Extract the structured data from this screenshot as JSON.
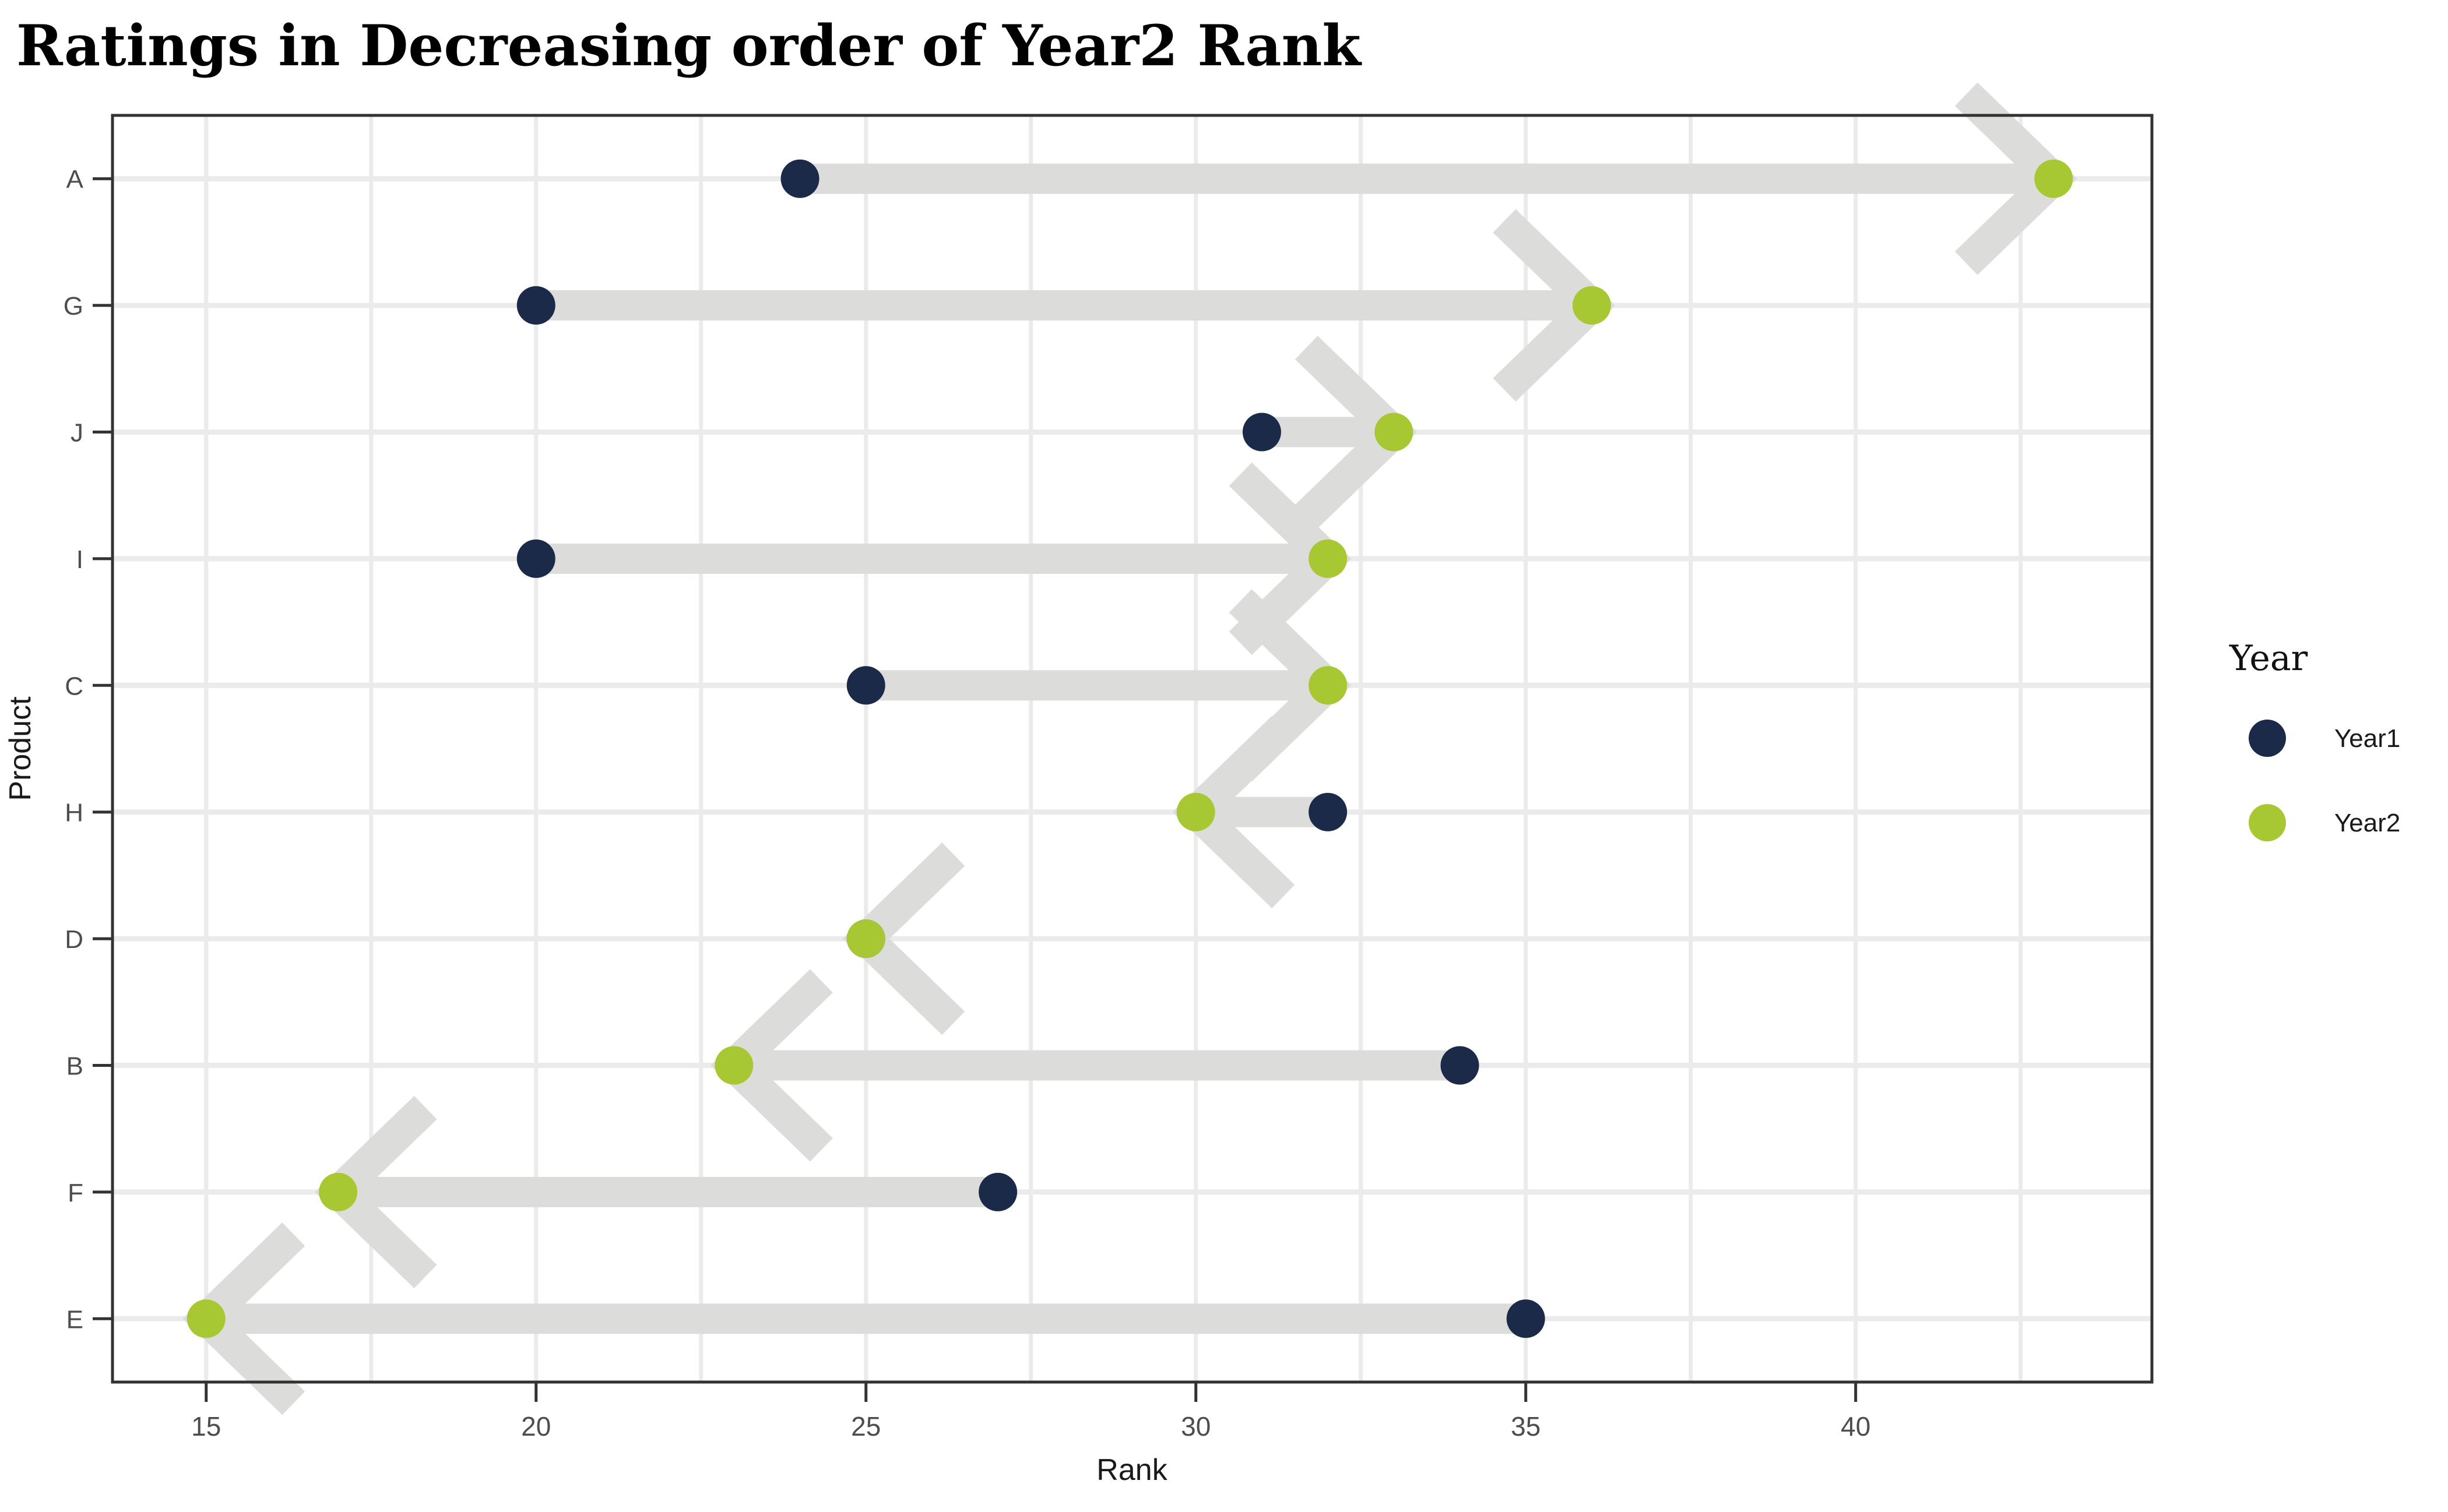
{
  "title": "Ratings in Decreasing order of Year2 Rank",
  "chart_data": {
    "type": "scatter",
    "variant": "arrow-dumbbell",
    "title": "Ratings in Decreasing order of Year2 Rank",
    "xlabel": "Rank",
    "ylabel": "Product",
    "categories": [
      "A",
      "G",
      "J",
      "I",
      "C",
      "H",
      "D",
      "B",
      "F",
      "E"
    ],
    "series": [
      {
        "name": "Year1",
        "color": "#1b2a48",
        "values": [
          24,
          20,
          31,
          20,
          25,
          32,
          25,
          34,
          27,
          35
        ]
      },
      {
        "name": "Year2",
        "color": "#a7c832",
        "values": [
          43,
          36,
          33,
          32,
          32,
          30,
          25,
          23,
          17,
          15
        ]
      }
    ],
    "x_ticks": [
      15,
      20,
      25,
      30,
      35,
      40
    ],
    "x_minor_step": 2.5,
    "xlim": [
      13.58,
      44.49
    ],
    "grid": true,
    "legend": {
      "title": "Year",
      "position": "right",
      "entries": [
        {
          "label": "Year1",
          "color": "#1b2a48"
        },
        {
          "label": "Year2",
          "color": "#a7c832"
        }
      ]
    },
    "colors": {
      "arrow": "#dcdcda",
      "gridline": "#ebebeb",
      "axis": "#333333",
      "tick_label": "#4d4d4d",
      "axis_title": "#1a1a1a",
      "title": "#000000",
      "background": "#ffffff"
    }
  }
}
